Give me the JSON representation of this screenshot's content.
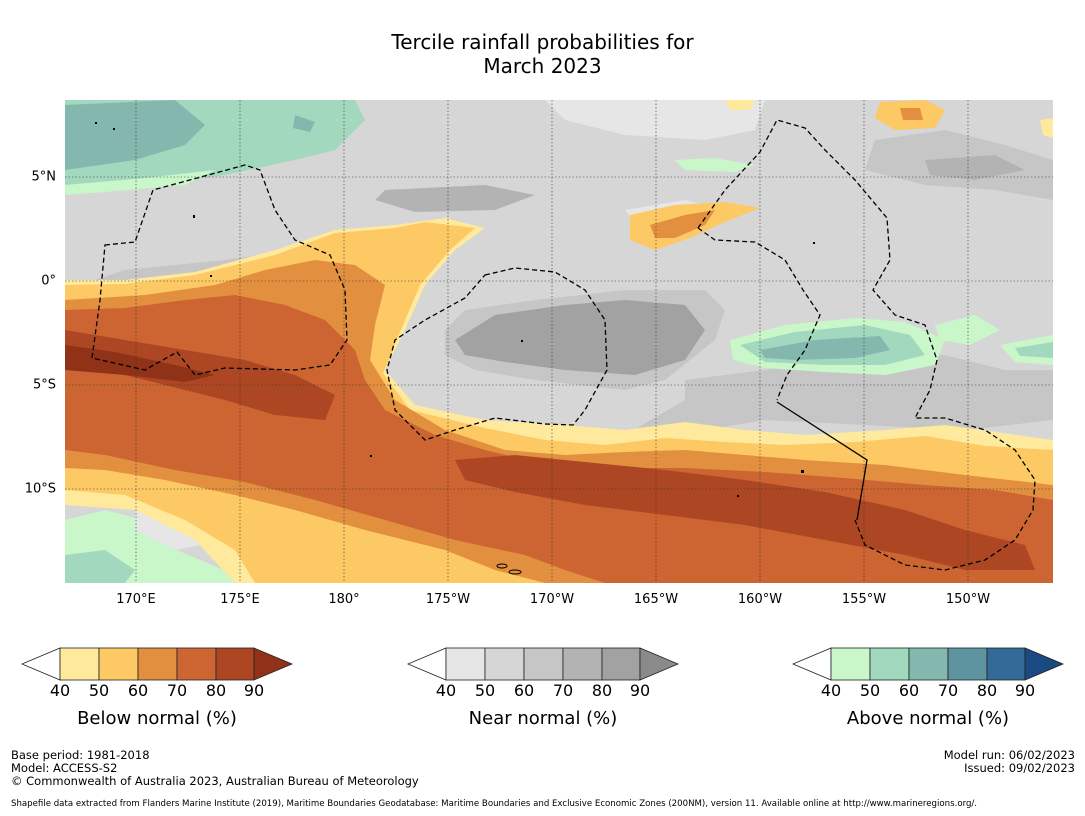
{
  "title": {
    "line1": "Tercile rainfall probabilities for",
    "line2": "March 2023"
  },
  "map": {
    "lat_labels": [
      "5°N",
      "0°",
      "5°S",
      "10°S"
    ],
    "lon_labels": [
      "170°E",
      "175°E",
      "180°",
      "175°W",
      "170°W",
      "165°W",
      "160°W",
      "155°W",
      "150°W"
    ]
  },
  "colorbars": [
    {
      "title": "Below normal (%)",
      "ticks": [
        "40",
        "50",
        "60",
        "70",
        "80",
        "90"
      ],
      "colors": [
        "#ffffff",
        "#fee99c",
        "#fdc965",
        "#e2903f",
        "#cc6531",
        "#ad4723",
        "#8f3218"
      ]
    },
    {
      "title": "Near normal (%)",
      "ticks": [
        "40",
        "50",
        "60",
        "70",
        "80",
        "90"
      ],
      "colors": [
        "#ffffff",
        "#e6e6e6",
        "#d6d6d6",
        "#c6c6c6",
        "#b3b3b3",
        "#a2a2a2",
        "#8a8a8a"
      ]
    },
    {
      "title": "Above normal (%)",
      "ticks": [
        "40",
        "50",
        "60",
        "70",
        "80",
        "90"
      ],
      "colors": [
        "#ffffff",
        "#c9f7ca",
        "#a2d8bd",
        "#84b7ad",
        "#5e93a0",
        "#336a98",
        "#194b82"
      ]
    }
  ],
  "footer": {
    "base_period": "Base period: 1981-2018",
    "model": "Model: ACCESS-S2",
    "copyright": "© Commonwealth of Australia 2023, Australian Bureau of Meteorology",
    "model_run": "Model run: 06/02/2023",
    "issued": "Issued: 09/02/2023",
    "shapefile": "Shapefile data extracted from Flanders Marine Institute (2019), Maritime Boundaries Geodatabase: Maritime Boundaries and Exclusive Economic Zones (200NM), version 11. Available online at http://www.marineregions.org/."
  }
}
